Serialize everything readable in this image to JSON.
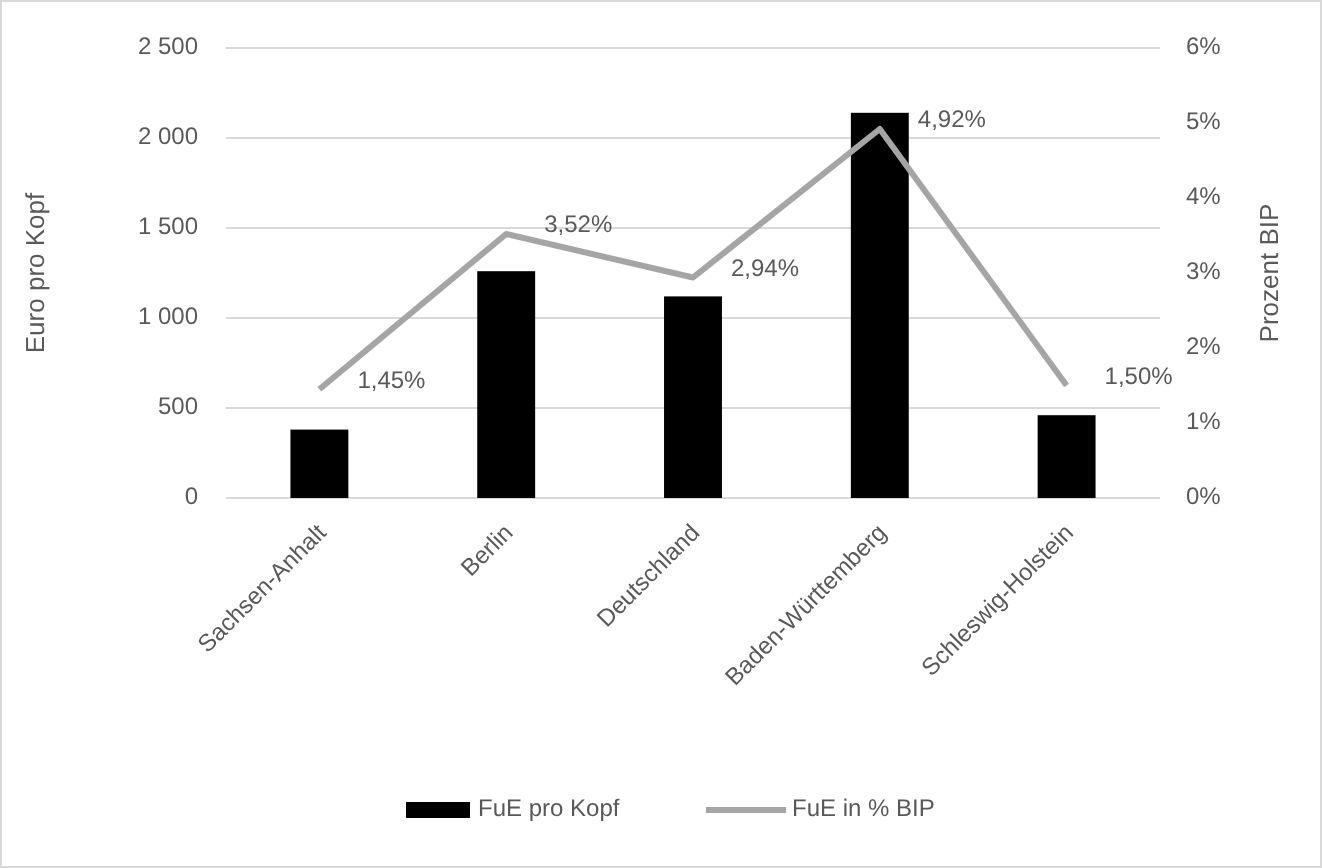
{
  "chart_data": {
    "type": "bar",
    "categories": [
      "Sachsen-Anhalt",
      "Berlin",
      "Deutschland",
      "Baden-Württemberg",
      "Schleswig-Holstein"
    ],
    "ylabel": "Euro pro Kopf",
    "y2label": "Prozent BIP",
    "series": [
      {
        "name": "FuE pro Kopf",
        "color": "#000000",
        "values": [
          380,
          1260,
          1120,
          2140,
          460
        ]
      },
      {
        "name": "FuE in % BIP",
        "type": "line",
        "axis": "y2",
        "color": "#a5a5a5",
        "values": [
          1.45,
          3.52,
          2.94,
          4.92,
          1.5
        ],
        "value_labels": [
          "1,45%",
          "3,52%",
          "2,94%",
          "4,92%",
          "1,50%"
        ]
      }
    ],
    "ylim": [
      0,
      2500
    ],
    "yticks": [
      0,
      500,
      {
        "value": 1000,
        "label": "1 000"
      },
      {
        "value": 1500,
        "label": "1 500"
      },
      {
        "value": 2000,
        "label": "2 000"
      },
      {
        "value": 2500,
        "label": "2 500"
      }
    ],
    "y2lim": [
      0,
      6
    ],
    "y2ticks": [
      {
        "value": 0,
        "label": "0%"
      },
      {
        "value": 1,
        "label": "1%"
      },
      {
        "value": 2,
        "label": "2%"
      },
      {
        "value": 3,
        "label": "3%"
      },
      {
        "value": 4,
        "label": "4%"
      },
      {
        "value": 5,
        "label": "5%"
      },
      {
        "value": 6,
        "label": "6%"
      }
    ],
    "grid": "y",
    "legend": "bottom",
    "marker": "none"
  }
}
